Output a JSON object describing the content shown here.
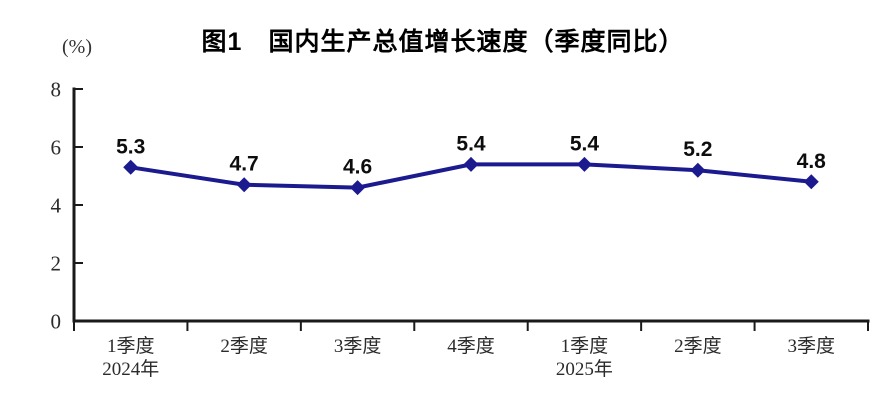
{
  "chart": {
    "title": "图1　国内生产总值增长速度（季度同比）",
    "unit_label": "(%)"
  },
  "chart_data": {
    "type": "line",
    "title": "图1　国内生产总值增长速度（季度同比）",
    "ylabel": "(%)",
    "xlabel": "",
    "categories": [
      "1季度 2024年",
      "2季度",
      "3季度",
      "4季度",
      "1季度 2025年",
      "2季度",
      "3季度"
    ],
    "category_lines": [
      [
        "1季度",
        "2024年"
      ],
      [
        "2季度"
      ],
      [
        "3季度"
      ],
      [
        "4季度"
      ],
      [
        "1季度",
        "2025年"
      ],
      [
        "2季度"
      ],
      [
        "3季度"
      ]
    ],
    "values": [
      5.3,
      4.7,
      4.6,
      5.4,
      5.4,
      5.2,
      4.8
    ],
    "data_labels": [
      "5.3",
      "4.7",
      "4.6",
      "5.4",
      "5.4",
      "5.2",
      "4.8"
    ],
    "ylim": [
      0,
      8
    ],
    "y_ticks": [
      0,
      2,
      4,
      6,
      8
    ],
    "grid": false,
    "legend_position": "none",
    "marker": "diamond",
    "colors": {
      "line": "#1b1b8f",
      "marker": "#1b1b8f",
      "axis": "#1a1a1a",
      "tick_text": "#2b2b2b",
      "data_label_text": "#0d0d0d",
      "background": "#ffffff"
    }
  }
}
